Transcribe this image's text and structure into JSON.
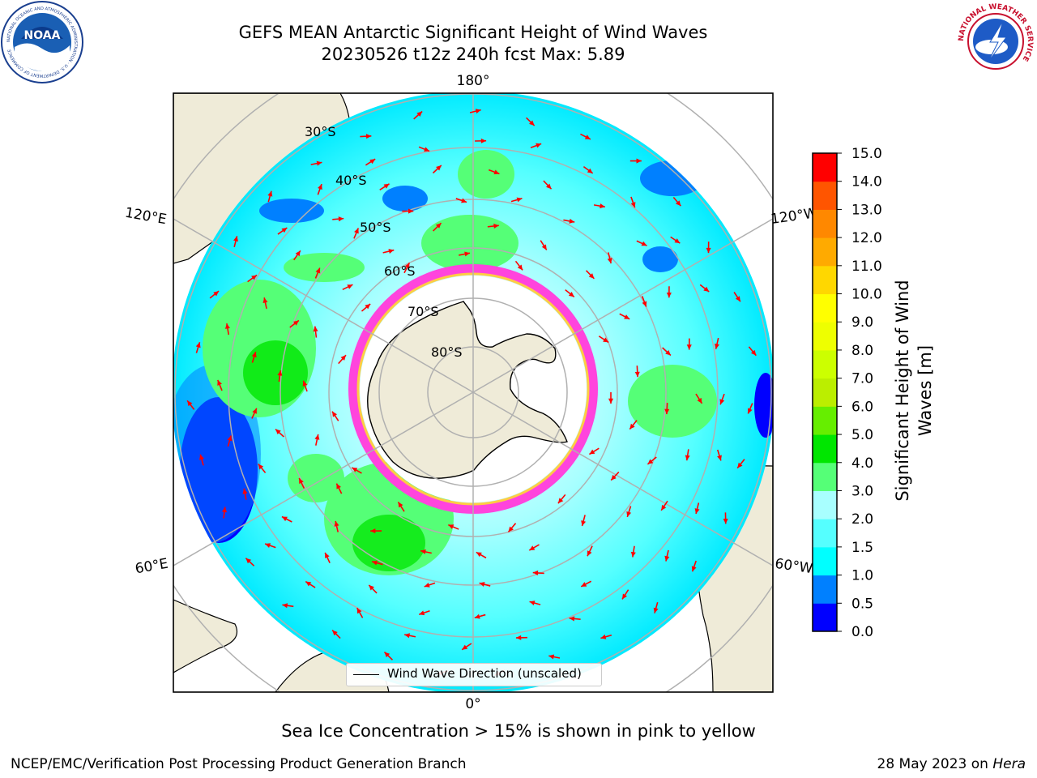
{
  "header": {
    "title_line1": "GEFS MEAN Antarctic Significant Height of Wind Waves",
    "title_line2": "20230526 t12z 240h fcst   Max: 5.89"
  },
  "logos": {
    "left": {
      "text": "NOAA",
      "ring_text": "NATIONAL OCEANIC AND ATMOSPHERIC ADMINISTRATION · U.S. DEPARTMENT OF COMMERCE"
    },
    "right": {
      "ring_text": "NATIONAL WEATHER SERVICE"
    }
  },
  "map": {
    "projection": "south-polar-stereographic",
    "longitude_labels": {
      "top": "180°",
      "bottom": "0°",
      "upper_left": "120°E",
      "upper_right": "120°W",
      "lower_left": "60°E",
      "lower_right": "60°W"
    },
    "latitude_labels": [
      "30°S",
      "40°S",
      "50°S",
      "60°S",
      "70°S",
      "80°S"
    ],
    "legend_label": "Wind Wave Direction (unscaled)",
    "colors": {
      "land": "#efebd8",
      "arrow": "#ff0000",
      "sea_ice_pink": "#ff44dd",
      "sea_ice_yellow": "#ffcc44",
      "grid": "#b0b0b0"
    }
  },
  "colorbar": {
    "label": "Significant Height of Wind Waves [m]",
    "label_line1": "Significant Height of Wind",
    "label_line2": "Waves [m]",
    "bounds": [
      0.0,
      0.5,
      1.0,
      1.5,
      2.0,
      3.0,
      4.0,
      5.0,
      6.0,
      7.0,
      8.0,
      9.0,
      10.0,
      11.0,
      12.0,
      13.0,
      14.0,
      15.0
    ],
    "tick_labels": [
      "0.0",
      "0.5",
      "1.0",
      "1.5",
      "2.0",
      "3.0",
      "4.0",
      "5.0",
      "6.0",
      "7.0",
      "8.0",
      "9.0",
      "10.0",
      "11.0",
      "12.0",
      "13.0",
      "14.0",
      "15.0"
    ],
    "colors": [
      "#0000ff",
      "#0080ff",
      "#00ffff",
      "#55ffff",
      "#a8ffff",
      "#55ff77",
      "#00e600",
      "#66ee00",
      "#bbee00",
      "#ccff00",
      "#eeff00",
      "#ffff00",
      "#ffd700",
      "#ffaa00",
      "#ff8800",
      "#ff5500",
      "#ff0000"
    ]
  },
  "footer": {
    "note": "Sea Ice Concentration > 15% is shown in pink to yellow",
    "left": "NCEP/EMC/Verification Post Processing Product Generation Branch",
    "right_date": "28 May 2023 on",
    "right_machine": "Hera"
  }
}
